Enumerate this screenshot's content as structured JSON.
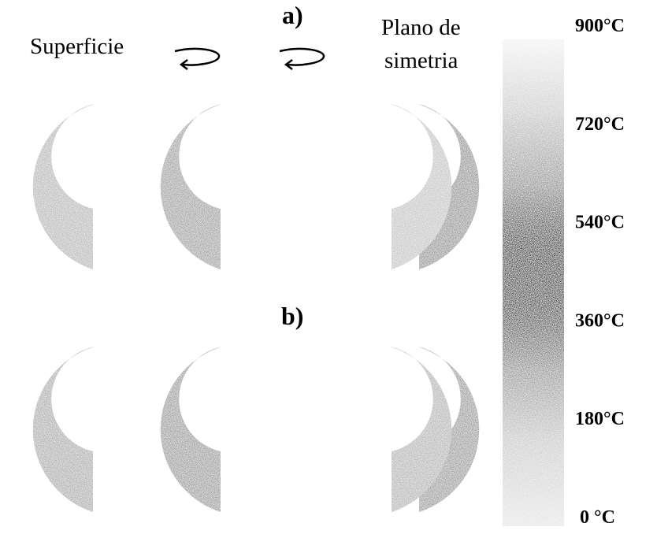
{
  "panels": [
    {
      "label": "a)"
    },
    {
      "label": "b)"
    }
  ],
  "annotations": {
    "left": "Superficie",
    "right": [
      "Plano de",
      "simetria"
    ]
  },
  "colorbar": {
    "labels": [
      "900°C",
      "720°C",
      "540°C",
      "360°C",
      "180°C",
      "0 °C"
    ]
  }
}
